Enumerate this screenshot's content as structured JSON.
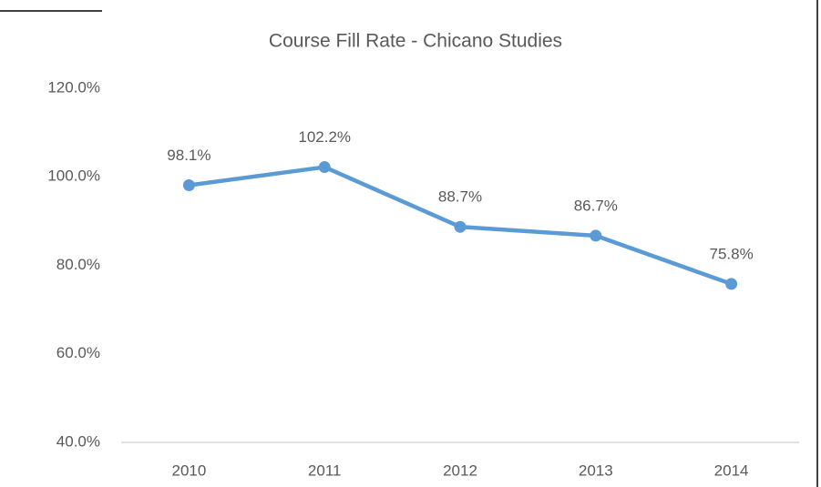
{
  "chart_data": {
    "type": "line",
    "title": "Course Fill Rate - Chicano Studies",
    "categories": [
      "2010",
      "2011",
      "2012",
      "2013",
      "2014"
    ],
    "values": [
      98.1,
      102.2,
      88.7,
      86.7,
      75.8
    ],
    "value_labels": [
      "98.1%",
      "102.2%",
      "88.7%",
      "86.7%",
      "75.8%"
    ],
    "color": "#5b9bd5",
    "ylim": [
      40,
      120
    ],
    "yticks": [
      {
        "value": 40,
        "label": "40.0%"
      },
      {
        "value": 60,
        "label": "60.0%"
      },
      {
        "value": 80,
        "label": "80.0%"
      },
      {
        "value": 100,
        "label": "100.0%"
      },
      {
        "value": 120,
        "label": "120.0%"
      }
    ],
    "grid": false
  }
}
